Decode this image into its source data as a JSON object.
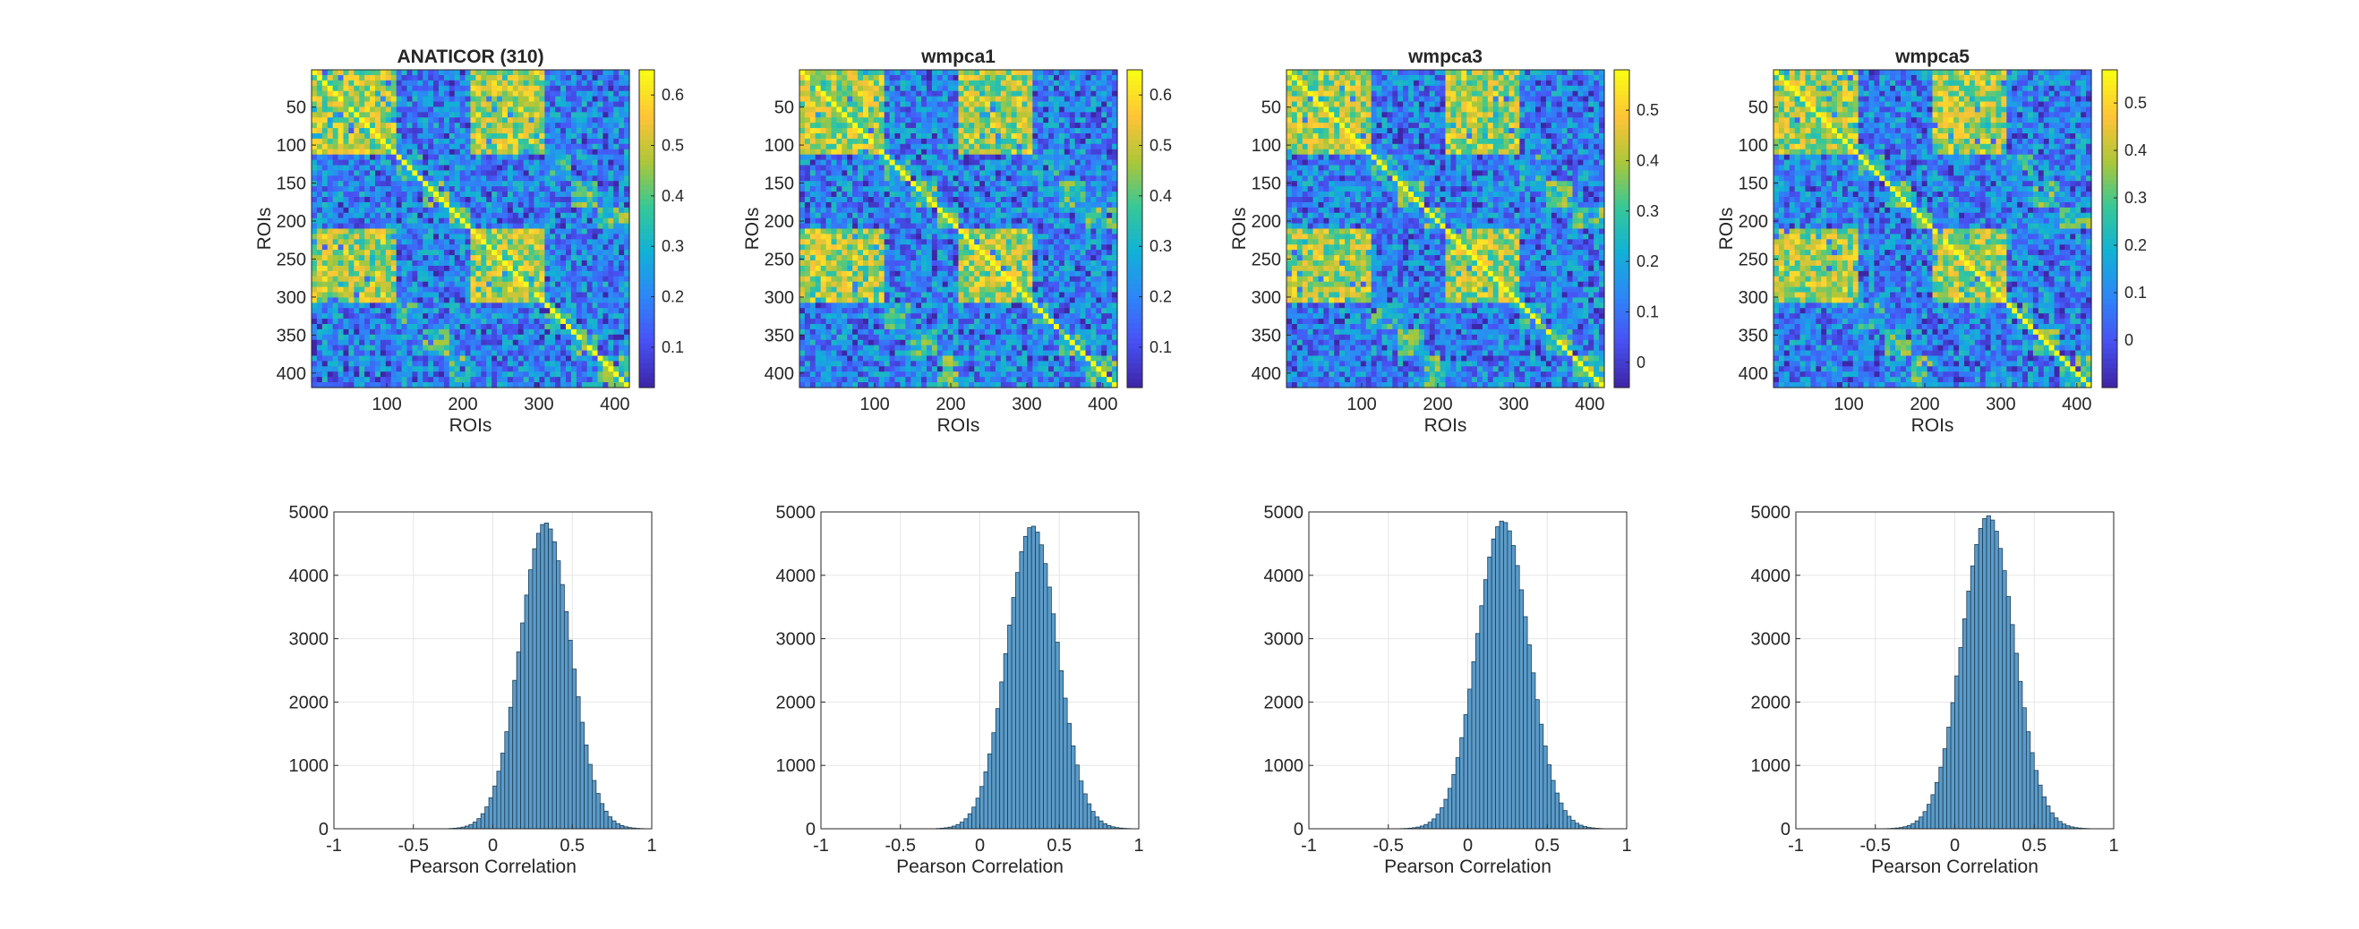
{
  "figure": {
    "background": "#ffffff"
  },
  "colormap": {
    "name": "parula",
    "low": "#3e26a8",
    "mid": "#1fa9c9",
    "high": "#f9fb0e"
  },
  "chart_data": [
    {
      "type": "heatmap",
      "title": "ANATICOR (310)",
      "xlabel": "ROIs",
      "ylabel": "ROIs",
      "xlim": [
        1,
        419
      ],
      "ylim": [
        1,
        419
      ],
      "xticks": [
        "100",
        "200",
        "300",
        "400"
      ],
      "yticks": [
        "50",
        "100",
        "150",
        "200",
        "250",
        "300",
        "350",
        "400"
      ],
      "colorbar": {
        "range": [
          0.02,
          0.65
        ],
        "ticks": [
          "0.1",
          "0.2",
          "0.3",
          "0.4",
          "0.5",
          "0.6"
        ]
      }
    },
    {
      "type": "heatmap",
      "title": "wmpca1",
      "xlabel": "ROIs",
      "ylabel": "ROIs",
      "xlim": [
        1,
        419
      ],
      "ylim": [
        1,
        419
      ],
      "xticks": [
        "100",
        "200",
        "300",
        "400"
      ],
      "yticks": [
        "50",
        "100",
        "150",
        "200",
        "250",
        "300",
        "350",
        "400"
      ],
      "colorbar": {
        "range": [
          0.02,
          0.65
        ],
        "ticks": [
          "0.1",
          "0.2",
          "0.3",
          "0.4",
          "0.5",
          "0.6"
        ]
      }
    },
    {
      "type": "heatmap",
      "title": "wmpca3",
      "xlabel": "ROIs",
      "ylabel": "ROIs",
      "xlim": [
        1,
        419
      ],
      "ylim": [
        1,
        419
      ],
      "xticks": [
        "100",
        "200",
        "300",
        "400"
      ],
      "yticks": [
        "50",
        "100",
        "150",
        "200",
        "250",
        "300",
        "350",
        "400"
      ],
      "colorbar": {
        "range": [
          -0.05,
          0.58
        ],
        "ticks": [
          "0",
          "0.1",
          "0.2",
          "0.3",
          "0.4",
          "0.5"
        ]
      }
    },
    {
      "type": "heatmap",
      "title": "wmpca5",
      "xlabel": "ROIs",
      "ylabel": "ROIs",
      "xlim": [
        1,
        419
      ],
      "ylim": [
        1,
        419
      ],
      "xticks": [
        "100",
        "200",
        "300",
        "400"
      ],
      "yticks": [
        "50",
        "100",
        "150",
        "200",
        "250",
        "300",
        "350",
        "400"
      ],
      "colorbar": {
        "range": [
          -0.1,
          0.57
        ],
        "ticks": [
          "0",
          "0.1",
          "0.2",
          "0.3",
          "0.4",
          "0.5"
        ]
      }
    },
    {
      "type": "bar",
      "title": "",
      "xlabel": "Pearson Correlation",
      "ylabel": "",
      "xlim": [
        -1,
        1
      ],
      "ylim": [
        0,
        5000
      ],
      "grid": true,
      "bar_color": "#5b9bc9",
      "xticks": [
        "-1",
        "-0.5",
        "0",
        "0.5",
        "1"
      ],
      "yticks": [
        "0",
        "1000",
        "2000",
        "3000",
        "4000",
        "5000"
      ],
      "peak_count": 4830,
      "peak_at": 0.33,
      "spread": 0.16
    },
    {
      "type": "bar",
      "title": "",
      "xlabel": "Pearson Correlation",
      "ylabel": "",
      "xlim": [
        -1,
        1
      ],
      "ylim": [
        0,
        5000
      ],
      "grid": true,
      "bar_color": "#5b9bc9",
      "xticks": [
        "-1",
        "-0.5",
        "0",
        "0.5",
        "1"
      ],
      "yticks": [
        "0",
        "1000",
        "2000",
        "3000",
        "4000",
        "5000"
      ],
      "peak_count": 4780,
      "peak_at": 0.33,
      "spread": 0.16
    },
    {
      "type": "bar",
      "title": "",
      "xlabel": "Pearson Correlation",
      "ylabel": "",
      "xlim": [
        -1,
        1
      ],
      "ylim": [
        0,
        5000
      ],
      "grid": true,
      "bar_color": "#5b9bc9",
      "xticks": [
        "-1",
        "-0.5",
        "0",
        "0.5",
        "1"
      ],
      "yticks": [
        "0",
        "1000",
        "2000",
        "3000",
        "4000",
        "5000"
      ],
      "peak_count": 4860,
      "peak_at": 0.22,
      "spread": 0.165
    },
    {
      "type": "bar",
      "title": "",
      "xlabel": "Pearson Correlation",
      "ylabel": "",
      "xlim": [
        -1,
        1
      ],
      "ylim": [
        0,
        5000
      ],
      "grid": true,
      "bar_color": "#5b9bc9",
      "xticks": [
        "-1",
        "-0.5",
        "0",
        "0.5",
        "1"
      ],
      "yticks": [
        "0",
        "1000",
        "2000",
        "3000",
        "4000",
        "5000"
      ],
      "peak_count": 4940,
      "peak_at": 0.21,
      "spread": 0.165
    }
  ]
}
